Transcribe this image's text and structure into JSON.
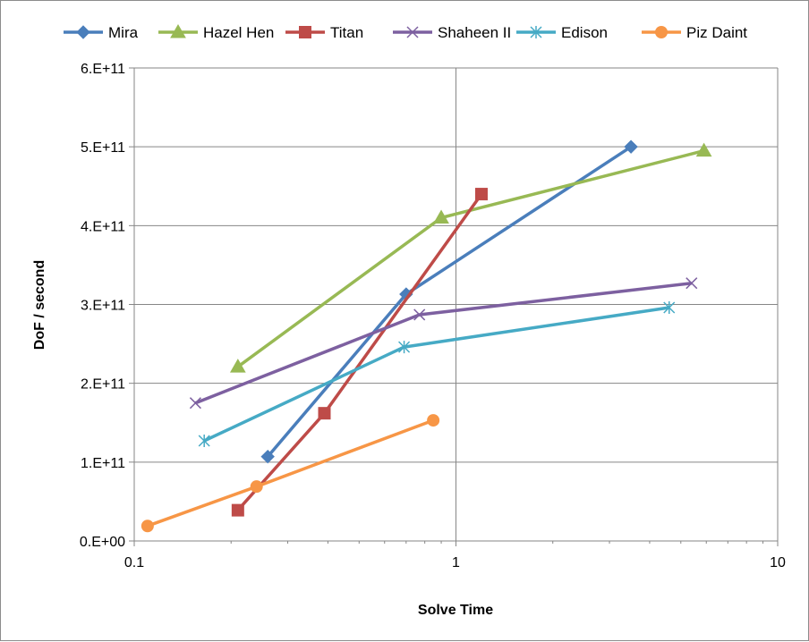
{
  "chart_data": {
    "type": "line",
    "title": "",
    "xlabel": "Solve Time",
    "ylabel": "DoF / second",
    "x_scale": "log",
    "xlim": [
      0.1,
      10
    ],
    "ylim": [
      0,
      600000000000
    ],
    "x_ticks": [
      {
        "value": 0.1,
        "label": "0.1"
      },
      {
        "value": 1,
        "label": "1"
      },
      {
        "value": 10,
        "label": "10"
      }
    ],
    "y_ticks": [
      {
        "value": 0,
        "label": "0.E+00"
      },
      {
        "value": 100000000000,
        "label": "1.E+11"
      },
      {
        "value": 200000000000,
        "label": "2.E+11"
      },
      {
        "value": 300000000000,
        "label": "3.E+11"
      },
      {
        "value": 400000000000,
        "label": "4.E+11"
      },
      {
        "value": 500000000000,
        "label": "5.E+11"
      },
      {
        "value": 600000000000,
        "label": "6.E+11"
      }
    ],
    "grid": true,
    "legend_position": "top",
    "series": [
      {
        "name": "Mira",
        "color": "#4a7ebb",
        "marker": "diamond",
        "x": [
          0.26,
          0.7,
          3.5
        ],
        "y": [
          107000000000,
          313000000000,
          500000000000
        ]
      },
      {
        "name": "Hazel Hen",
        "color": "#98b954",
        "marker": "triangle",
        "x": [
          0.21,
          0.9,
          5.9
        ],
        "y": [
          221000000000,
          410000000000,
          495000000000
        ]
      },
      {
        "name": "Titan",
        "color": "#be4b48",
        "marker": "square",
        "x": [
          0.21,
          0.39,
          1.2
        ],
        "y": [
          39000000000,
          162000000000,
          440000000000
        ]
      },
      {
        "name": "Shaheen II",
        "color": "#7d60a0",
        "marker": "x",
        "x": [
          0.155,
          0.77,
          5.4
        ],
        "y": [
          175000000000,
          287000000000,
          327000000000
        ]
      },
      {
        "name": "Edison",
        "color": "#46aac5",
        "marker": "star",
        "x": [
          0.165,
          0.69,
          4.6
        ],
        "y": [
          127000000000,
          246000000000,
          296000000000
        ]
      },
      {
        "name": "Piz Daint",
        "color": "#f79646",
        "marker": "circle",
        "x": [
          0.11,
          0.24,
          0.85
        ],
        "y": [
          19000000000,
          69000000000,
          153000000000
        ]
      }
    ]
  }
}
